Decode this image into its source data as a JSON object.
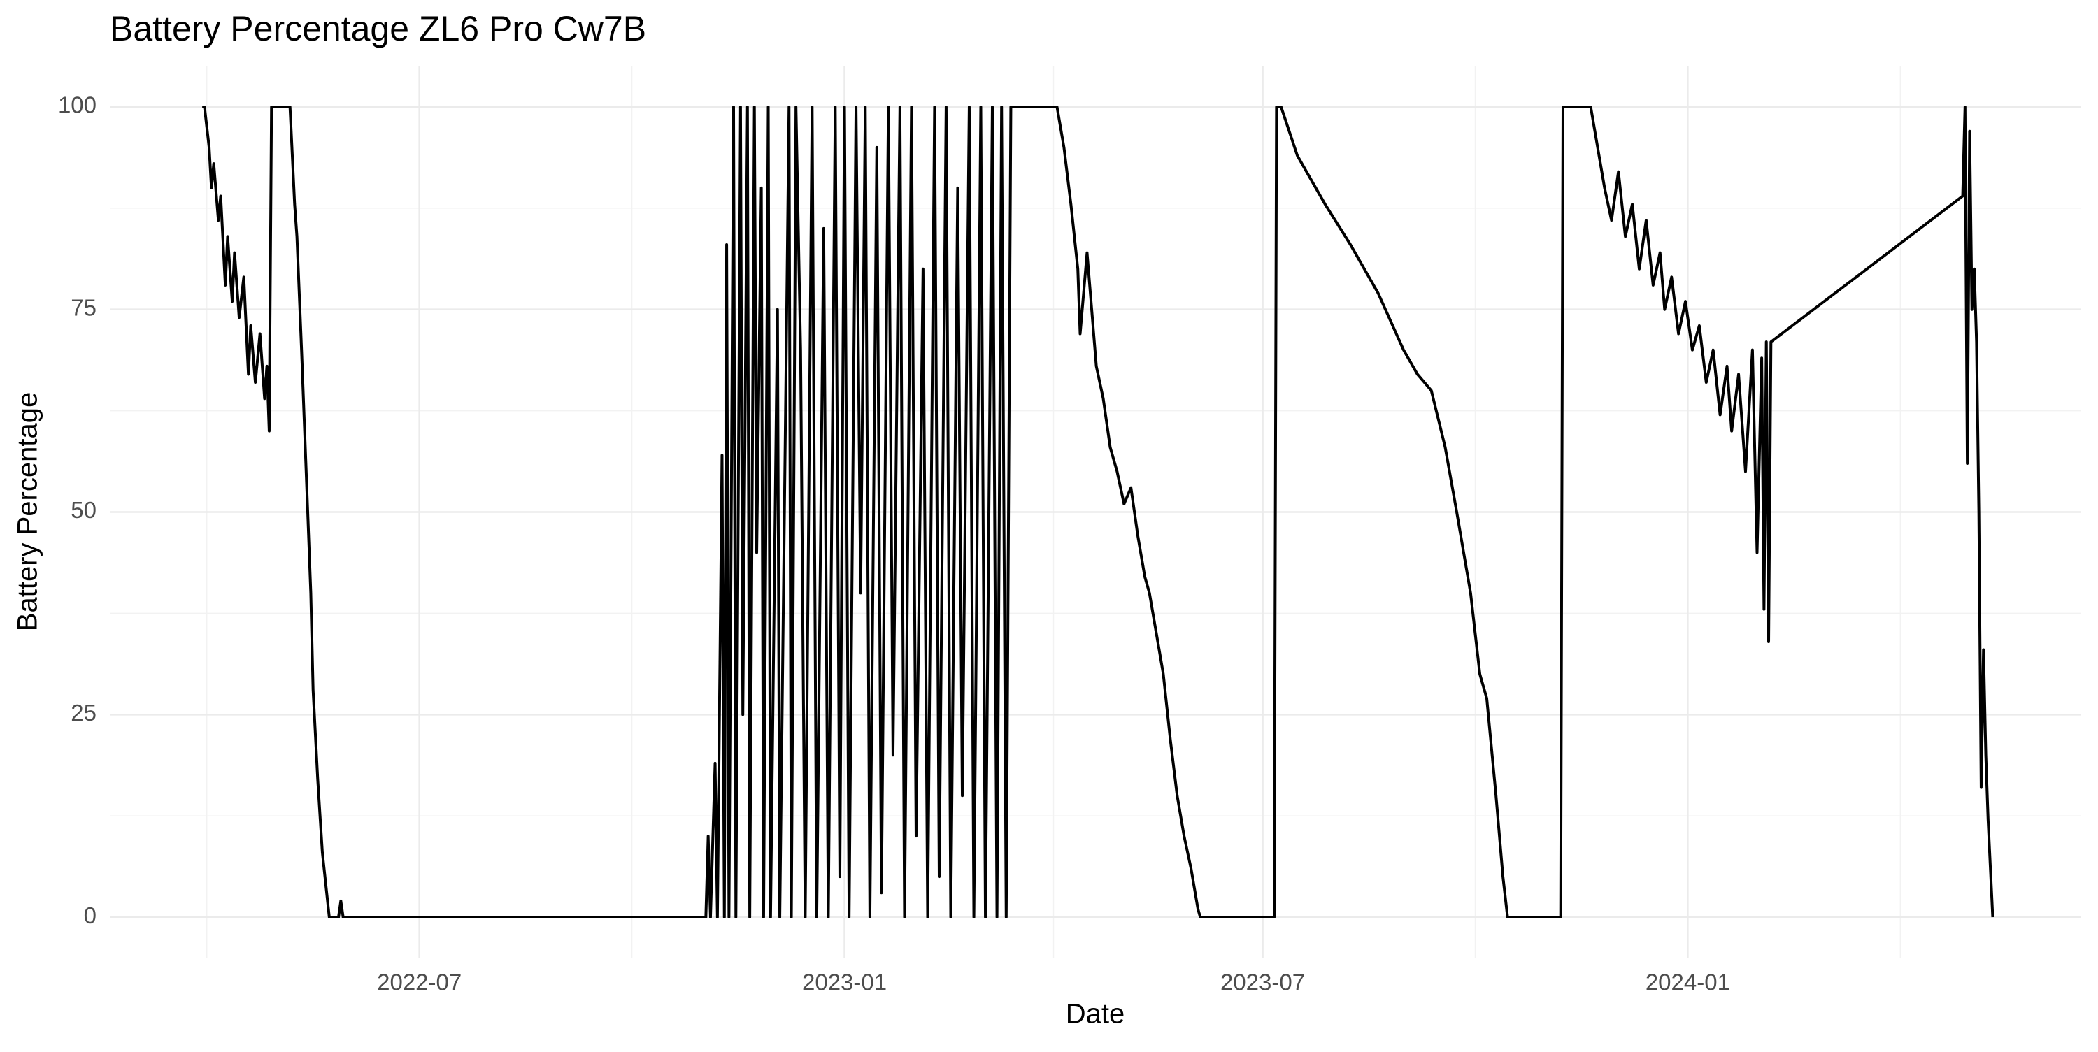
{
  "chart_data": {
    "type": "line",
    "title": "Battery Percentage ZL6 Pro Cw7B",
    "x_label": "Date",
    "y_label": "Battery Percentage",
    "color": "#000000",
    "grid": true,
    "minor_grid": true,
    "xlim": [
      19040,
      19893
    ],
    "ylim": [
      -5,
      105
    ],
    "xticks": [
      {
        "value": 19174,
        "label": "2022-07"
      },
      {
        "value": 19358,
        "label": "2023-01"
      },
      {
        "value": 19539,
        "label": "2023-07"
      },
      {
        "value": 19723,
        "label": "2024-01"
      }
    ],
    "yticks": [
      0,
      25,
      50,
      75,
      100
    ],
    "x": [
      19080,
      19081,
      19083,
      19084,
      19085,
      19087,
      19088,
      19090,
      19091,
      19093,
      19094,
      19096,
      19098,
      19100,
      19101,
      19103,
      19105,
      19107,
      19108,
      19109,
      19110,
      19118,
      19120,
      19121,
      19123,
      19125,
      19127,
      19128,
      19130,
      19132,
      19135,
      19139,
      19140,
      19141,
      19298,
      19299,
      19300,
      19302,
      19303,
      19305,
      19306,
      19307,
      19308,
      19310,
      19311,
      19313,
      19314,
      19316,
      19317,
      19319,
      19320,
      19322,
      19323,
      19325,
      19326,
      19329,
      19330,
      19334,
      19335,
      19337,
      19339,
      19341,
      19344,
      19346,
      19349,
      19351,
      19354,
      19356,
      19358,
      19360,
      19363,
      19365,
      19367,
      19369,
      19372,
      19374,
      19377,
      19379,
      19382,
      19384,
      19387,
      19389,
      19392,
      19394,
      19397,
      19399,
      19402,
      19404,
      19407,
      19409,
      19412,
      19414,
      19417,
      19419,
      19422,
      19424,
      19426,
      19428,
      19430,
      19450,
      19453,
      19456,
      19459,
      19460,
      19463,
      19465,
      19467,
      19470,
      19473,
      19476,
      19479,
      19482,
      19485,
      19488,
      19490,
      19493,
      19496,
      19499,
      19502,
      19505,
      19508,
      19511,
      19512,
      19544,
      19545,
      19547,
      19554,
      19566,
      19577,
      19589,
      19600,
      19606,
      19612,
      19618,
      19623,
      19629,
      19633,
      19636,
      19640,
      19643,
      19645,
      19668,
      19669,
      19681,
      19684,
      19687,
      19690,
      19693,
      19696,
      19699,
      19702,
      19705,
      19708,
      19711,
      19713,
      19716,
      19719,
      19722,
      19725,
      19728,
      19731,
      19734,
      19737,
      19740,
      19742,
      19745,
      19748,
      19751,
      19753,
      19755,
      19756,
      19757,
      19758,
      19759,
      19842,
      19843,
      19844,
      19845,
      19846,
      19847,
      19848,
      19849,
      19850,
      19851,
      19852,
      19853,
      19855
    ],
    "values": [
      100,
      100,
      95,
      90,
      93,
      86,
      89,
      78,
      84,
      76,
      82,
      74,
      79,
      67,
      73,
      66,
      72,
      64,
      68,
      60,
      100,
      100,
      88,
      84,
      70,
      55,
      40,
      28,
      17,
      8,
      0,
      0,
      2,
      0,
      0,
      10,
      0,
      19,
      0,
      57,
      0,
      83,
      0,
      100,
      0,
      100,
      25,
      100,
      0,
      100,
      45,
      90,
      0,
      100,
      0,
      75,
      0,
      100,
      0,
      100,
      70,
      0,
      100,
      0,
      85,
      0,
      100,
      5,
      100,
      0,
      100,
      40,
      100,
      0,
      95,
      3,
      100,
      20,
      100,
      0,
      100,
      10,
      80,
      0,
      100,
      5,
      100,
      0,
      90,
      15,
      100,
      0,
      100,
      0,
      100,
      0,
      100,
      0,
      100,
      100,
      95,
      88,
      80,
      72,
      82,
      75,
      68,
      64,
      58,
      55,
      51,
      53,
      47,
      42,
      40,
      35,
      30,
      22,
      15,
      10,
      6,
      1,
      0,
      0,
      100,
      100,
      94,
      88,
      83,
      77,
      70,
      67,
      65,
      58,
      50,
      40,
      30,
      27,
      15,
      5,
      0,
      0,
      100,
      100,
      95,
      90,
      86,
      92,
      84,
      88,
      80,
      86,
      78,
      82,
      75,
      79,
      72,
      76,
      70,
      73,
      66,
      70,
      62,
      68,
      60,
      67,
      55,
      70,
      45,
      69,
      38,
      71,
      34,
      71,
      89,
      100,
      56,
      97,
      75,
      80,
      71,
      50,
      16,
      33,
      20,
      12,
      0
    ]
  }
}
